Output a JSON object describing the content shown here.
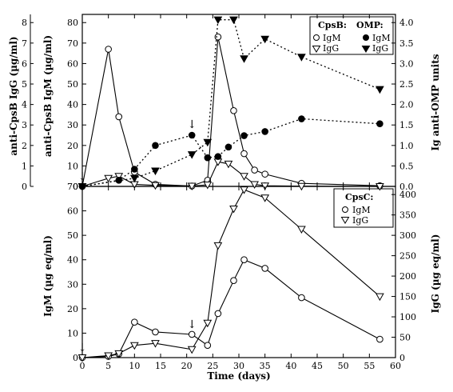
{
  "chart_data": [
    {
      "type": "line",
      "panel": "top",
      "xlabel": "",
      "xlim": [
        0,
        60
      ],
      "x_ticks": [
        "0",
        "5",
        "10",
        "15",
        "20",
        "25",
        "30",
        "35",
        "40",
        "45",
        "50",
        "55",
        "60"
      ],
      "ylabel_left_outer": "anti-CpsB IgG (µg/ml)",
      "ylabel_left_inner": "anti-CpsB IgM (µg/ml)",
      "ylabel_right": "Ig anti-OMP units",
      "y_left_outer_ticks": [
        "0",
        "1",
        "2",
        "3",
        "4",
        "5",
        "6",
        "7",
        "8"
      ],
      "y_left_outer_lim": [
        0,
        8.4
      ],
      "ylim": [
        0,
        84
      ],
      "y_left_ticks": [
        "0",
        "10",
        "20",
        "30",
        "40",
        "50",
        "60",
        "70",
        "80"
      ],
      "y_right_lim": [
        0,
        4.2
      ],
      "y_right_ticks": [
        "0.0",
        "0.5",
        "1.0",
        "1.5",
        "2.0",
        "2.5",
        "3.0",
        "3.5",
        "4.0"
      ],
      "legend": {
        "groups": [
          {
            "title": "CpsB:",
            "entries": [
              {
                "name": "IgM",
                "marker": "open-circle"
              },
              {
                "name": "IgG",
                "marker": "open-triangle-down"
              }
            ]
          },
          {
            "title": "OMP:",
            "entries": [
              {
                "name": "IgM",
                "marker": "filled-circle"
              },
              {
                "name": "IgG",
                "marker": "filled-triangle-down"
              }
            ]
          }
        ]
      },
      "series": [
        {
          "name": "IgM",
          "group": "CpsB",
          "axis": "left",
          "marker": "open-circle",
          "line": "solid",
          "x": [
            0,
            5,
            7,
            10,
            14,
            21,
            24,
            26,
            29,
            31,
            33,
            35,
            42,
            57
          ],
          "y": [
            0,
            67,
            34,
            7,
            1,
            0.2,
            3,
            73,
            37,
            16,
            8,
            6,
            1.5,
            0.3
          ]
        },
        {
          "name": "IgG",
          "group": "CpsB",
          "axis": "left",
          "marker": "open-triangle-down",
          "line": "solid",
          "x": [
            0,
            5,
            7,
            10,
            14,
            21,
            24,
            26,
            28,
            31,
            33,
            35,
            42,
            57
          ],
          "y": [
            0,
            4,
            5,
            1,
            0.5,
            0.2,
            0.8,
            12,
            11,
            5,
            1,
            0.3,
            0.1,
            0
          ]
        },
        {
          "name": "IgM",
          "group": "OMP",
          "axis": "right",
          "marker": "filled-circle",
          "line": "dotted",
          "x": [
            0,
            7,
            10,
            14,
            21,
            24,
            26,
            28,
            31,
            35,
            42,
            57
          ],
          "y": [
            0,
            0.15,
            0.42,
            1.0,
            1.25,
            0.7,
            0.73,
            0.96,
            1.24,
            1.34,
            1.65,
            1.53
          ]
        },
        {
          "name": "IgG",
          "group": "OMP",
          "axis": "right",
          "marker": "filled-triangle-down",
          "line": "dotted",
          "x": [
            0,
            10,
            14,
            21,
            24,
            26,
            29,
            31,
            35,
            42,
            57
          ],
          "y": [
            0,
            0.2,
            0.38,
            0.78,
            1.08,
            4.07,
            4.07,
            3.12,
            3.6,
            3.16,
            2.37
          ]
        }
      ],
      "annotations": [
        {
          "type": "arrow",
          "x": 0,
          "label": "↓"
        },
        {
          "type": "arrow",
          "x": 21,
          "label": "↓"
        }
      ]
    },
    {
      "type": "line",
      "panel": "bottom",
      "xlabel": "Time (days)",
      "xlim": [
        0,
        60
      ],
      "x_ticks": [
        "0",
        "5",
        "10",
        "15",
        "20",
        "25",
        "30",
        "35",
        "40",
        "45",
        "50",
        "55",
        "60"
      ],
      "ylabel": "IgM (µg eq/ml)",
      "ylabel_right": "IgG (µg eq/ml)",
      "ylim": [
        0,
        70
      ],
      "y_left_ticks": [
        "0",
        "10",
        "20",
        "30",
        "40",
        "50",
        "60",
        "70"
      ],
      "y_right_lim": [
        0,
        420
      ],
      "y_right_ticks": [
        "0",
        "50",
        "100",
        "150",
        "200",
        "250",
        "300",
        "350",
        "400"
      ],
      "legend": {
        "groups": [
          {
            "title": "CpsC:",
            "entries": [
              {
                "name": "IgM",
                "marker": "open-circle"
              },
              {
                "name": "IgG",
                "marker": "open-triangle-down"
              }
            ]
          }
        ]
      },
      "series": [
        {
          "name": "IgM",
          "group": "CpsC",
          "axis": "left",
          "marker": "open-circle",
          "line": "solid",
          "x": [
            0,
            5,
            7,
            10,
            14,
            21,
            24,
            26,
            29,
            31,
            35,
            42,
            57
          ],
          "y": [
            0,
            0.5,
            1.5,
            14.5,
            10.5,
            9.5,
            5,
            18,
            31.5,
            40,
            36.5,
            24.5,
            7.5
          ]
        },
        {
          "name": "IgG",
          "group": "CpsC",
          "axis": "right",
          "marker": "open-triangle-down",
          "line": "solid",
          "x": [
            0,
            5,
            7,
            10,
            14,
            21,
            24,
            26,
            29,
            31,
            35,
            42,
            57
          ],
          "y": [
            0,
            5,
            10,
            30,
            35,
            20,
            85,
            275,
            365,
            412,
            392,
            315,
            150
          ]
        }
      ],
      "annotations": [
        {
          "type": "arrow",
          "x": 0,
          "label": "↓"
        },
        {
          "type": "arrow",
          "x": 21,
          "label": "↓"
        }
      ]
    }
  ]
}
